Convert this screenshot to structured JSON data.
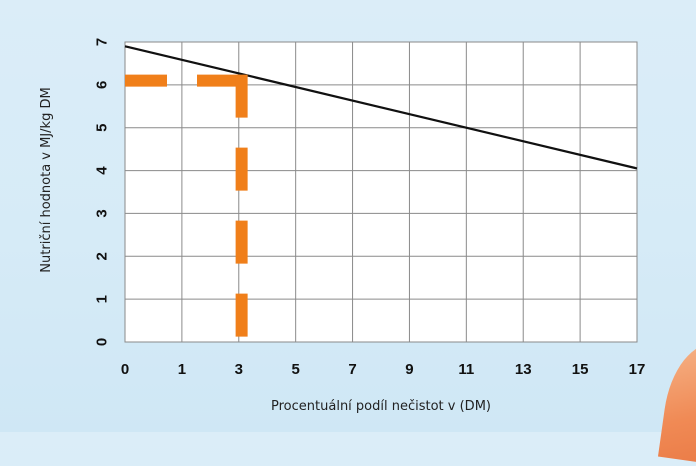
{
  "chart_data": {
    "type": "line",
    "title": "",
    "xlabel": "Procentuální podíl nečistot v (DM)",
    "ylabel": "Nutriční hodnota v MJ/kg DM",
    "x_ticks": [
      "0",
      "1",
      "3",
      "5",
      "7",
      "9",
      "11",
      "13",
      "15",
      "17"
    ],
    "y_ticks": [
      "0",
      "1",
      "2",
      "3",
      "4",
      "5",
      "6",
      "7"
    ],
    "xlim": [
      0,
      17
    ],
    "ylim": [
      0,
      7
    ],
    "grid": true,
    "series": [
      {
        "x": [
          0,
          17
        ],
        "y": [
          6.9,
          4.05
        ],
        "color": "#111111"
      }
    ],
    "annotations": [
      {
        "type": "dashed-guide",
        "x": 3.1,
        "y": 6.1,
        "color": "#f07f1a"
      }
    ]
  },
  "colors": {
    "background": "#d8ecf8",
    "plot_area": "#ffffff",
    "grid": "#8a8a8a",
    "line": "#111111",
    "guide": "#f07f1a"
  }
}
